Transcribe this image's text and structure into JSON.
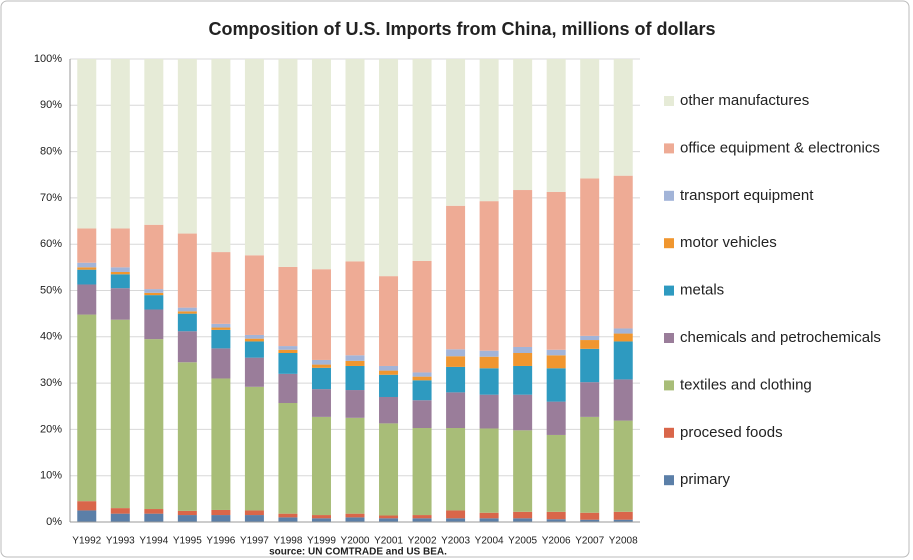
{
  "chart_data": {
    "type": "stacked_bar",
    "title": "Composition of U.S. Imports from China, millions of dollars",
    "source": "source: UN COMTRADE and US BEA.",
    "categories": [
      "Y1992",
      "Y1993",
      "Y1994",
      "Y1995",
      "Y1996",
      "Y1997",
      "Y1998",
      "Y1999",
      "Y2000",
      "Y2001",
      "Y2002",
      "Y2003",
      "Y2004",
      "Y2005",
      "Y2006",
      "Y2007",
      "Y2008"
    ],
    "series": [
      {
        "name": "primary",
        "color": "#5b7fa8",
        "values": [
          2.5,
          1.8,
          1.8,
          1.5,
          1.5,
          1.5,
          1.0,
          0.8,
          1.0,
          0.8,
          0.8,
          0.8,
          0.8,
          0.8,
          0.6,
          0.5,
          0.5
        ]
      },
      {
        "name": "procesed foods",
        "color": "#d9664a",
        "values": [
          2.0,
          1.2,
          1.0,
          0.9,
          1.1,
          1.0,
          0.8,
          0.7,
          0.8,
          0.6,
          0.7,
          1.7,
          1.2,
          1.4,
          1.6,
          1.5,
          1.7
        ]
      },
      {
        "name": "textiles and clothing",
        "color": "#a8bd78",
        "values": [
          40.3,
          40.7,
          36.7,
          32.1,
          28.4,
          26.7,
          23.9,
          21.2,
          20.7,
          19.9,
          18.8,
          17.8,
          18.2,
          17.6,
          16.6,
          20.7,
          19.7
        ]
      },
      {
        "name": "chemicals and petrochemicals",
        "color": "#9a7d9a",
        "values": [
          6.5,
          6.8,
          6.4,
          6.7,
          6.5,
          6.3,
          6.3,
          6.0,
          6.0,
          5.7,
          6.0,
          7.7,
          7.3,
          7.7,
          7.2,
          7.5,
          8.9
        ]
      },
      {
        "name": "metals",
        "color": "#2e9ac0",
        "values": [
          3.2,
          3.0,
          3.1,
          3.8,
          4.0,
          3.5,
          4.5,
          4.6,
          5.2,
          4.8,
          4.3,
          5.5,
          5.7,
          6.2,
          7.2,
          7.2,
          8.2
        ]
      },
      {
        "name": "motor vehicles",
        "color": "#f0962f",
        "values": [
          0.5,
          0.5,
          0.5,
          0.5,
          0.5,
          0.6,
          0.7,
          0.7,
          1.1,
          0.9,
          0.8,
          2.3,
          2.5,
          2.8,
          2.8,
          1.9,
          1.7
        ]
      },
      {
        "name": "transport equipment",
        "color": "#a2b4d8",
        "values": [
          1.0,
          1.0,
          0.8,
          0.8,
          0.8,
          0.8,
          0.8,
          1.0,
          1.2,
          1.0,
          0.9,
          1.5,
          1.3,
          1.3,
          1.2,
          0.9,
          1.1
        ]
      },
      {
        "name": "office equipment & electronics",
        "color": "#eeab95",
        "values": [
          7.4,
          8.4,
          13.9,
          16.0,
          15.5,
          17.2,
          17.1,
          19.6,
          20.3,
          19.4,
          24.1,
          31.0,
          32.3,
          33.9,
          34.1,
          34.0,
          33.0
        ]
      },
      {
        "name": "other manufactures",
        "color": "#e6ebd7",
        "values": [
          36.6,
          36.6,
          35.8,
          37.7,
          41.7,
          42.4,
          44.9,
          45.4,
          43.7,
          46.9,
          43.6,
          31.7,
          30.7,
          28.3,
          28.7,
          25.8,
          25.2
        ]
      }
    ],
    "ylim": [
      0,
      100
    ],
    "yticks": [
      {
        "value": 0,
        "label": "0%"
      },
      {
        "value": 10,
        "label": "10%"
      },
      {
        "value": 20,
        "label": "20%"
      },
      {
        "value": 30,
        "label": "30%"
      },
      {
        "value": 40,
        "label": "40%"
      },
      {
        "value": 50,
        "label": "50%"
      },
      {
        "value": 60,
        "label": "60%"
      },
      {
        "value": 70,
        "label": "70%"
      },
      {
        "value": 80,
        "label": "80%"
      },
      {
        "value": 90,
        "label": "90%"
      },
      {
        "value": 100,
        "label": "100%"
      }
    ],
    "grid": true,
    "legend": "right"
  }
}
